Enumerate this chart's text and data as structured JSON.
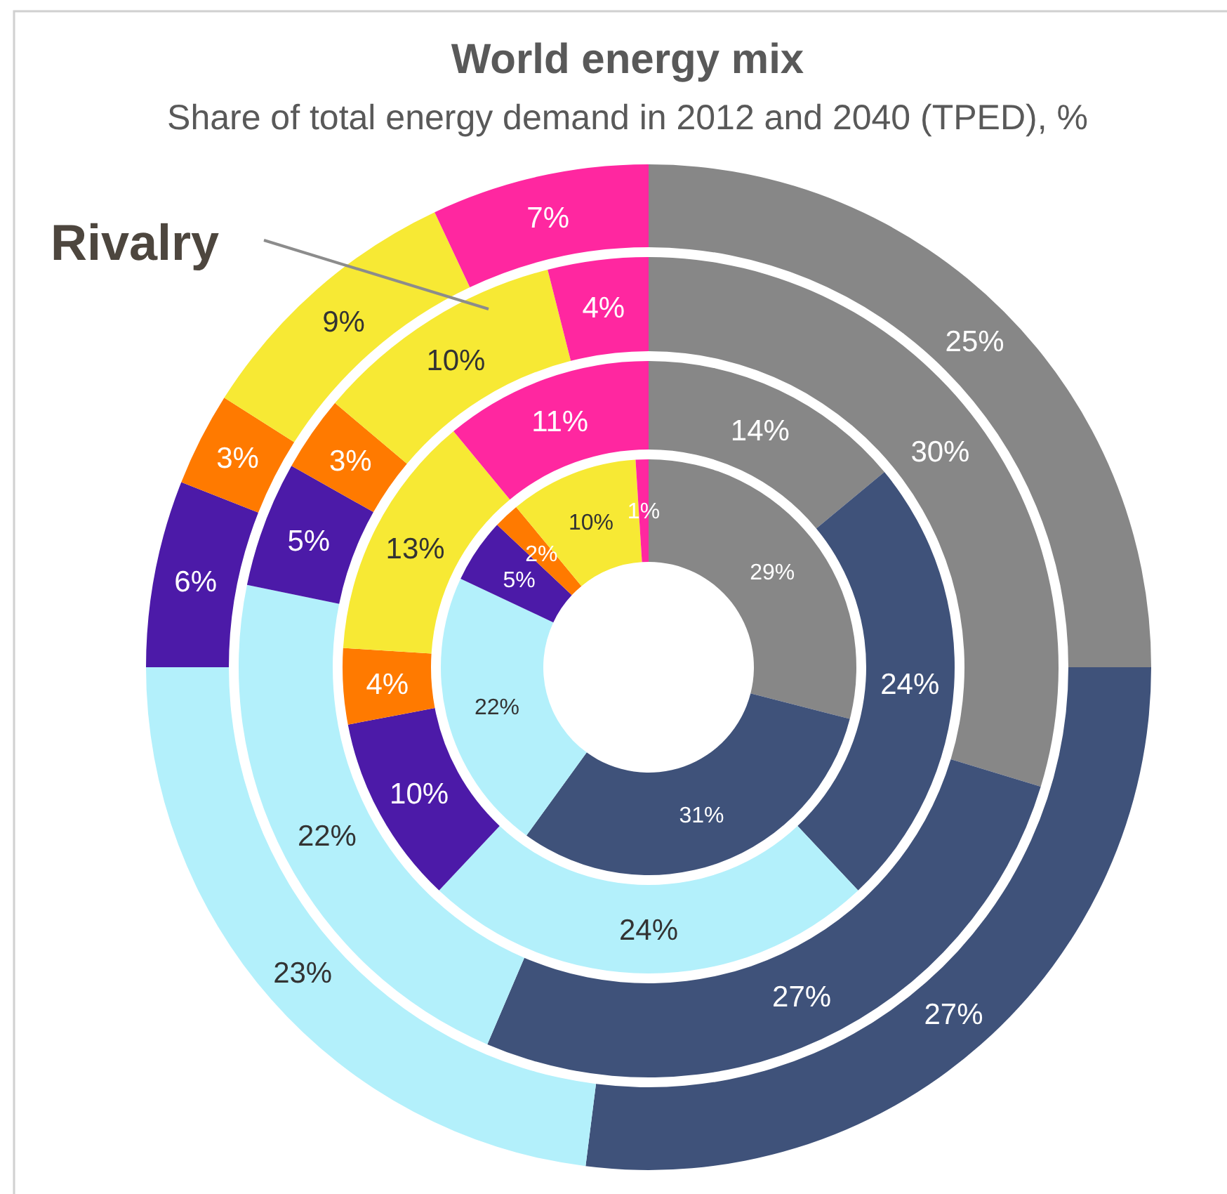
{
  "chart_data": {
    "type": "donut",
    "title": "World energy mix",
    "subtitle": "Share of total energy demand in 2012 and 2040 (TPED), %",
    "annotations": [
      "Rivalry"
    ],
    "categories": [
      null,
      null,
      null,
      null,
      null,
      null,
      null
    ],
    "series": [
      {
        "values": [
          29,
          31,
          22,
          5,
          2,
          10,
          1
        ],
        "value_labels": [
          "29%",
          "31%",
          "22%",
          "5%",
          "2%",
          "10%",
          "1%"
        ],
        "colors": [
          "#878787",
          "#3f527a",
          "#b3f0fb",
          "#4c1aa8",
          "#ff7a00",
          "#f7e934",
          "#ff27a0"
        ]
      },
      {
        "values": [
          14,
          24,
          24,
          10,
          4,
          13,
          11
        ],
        "value_labels": [
          "14%",
          "24%",
          "24%",
          "10%",
          "4%",
          "13%",
          "11%"
        ],
        "colors": [
          "#878787",
          "#3f527a",
          "#b3f0fb",
          "#4c1aa8",
          "#ff7a00",
          "#f7e934",
          "#ff27a0"
        ]
      },
      {
        "values": [
          30,
          27,
          22,
          5,
          3,
          10,
          4
        ],
        "value_labels": [
          "30%",
          "27%",
          "22%",
          "5%",
          "3%",
          "10%",
          "4%"
        ],
        "colors": [
          "#878787",
          "#3f527a",
          "#b3f0fb",
          "#4c1aa8",
          "#ff7a00",
          "#f7e934",
          "#ff27a0"
        ]
      },
      {
        "values": [
          25,
          27,
          23,
          6,
          3,
          9,
          7
        ],
        "value_labels": [
          "25%",
          "27%",
          "23%",
          "6%",
          "3%",
          "9%",
          "7%"
        ],
        "colors": [
          "#878787",
          "#3f527a",
          "#b3f0fb",
          "#4c1aa8",
          "#ff7a00",
          "#f7e934",
          "#ff27a0"
        ]
      }
    ]
  }
}
